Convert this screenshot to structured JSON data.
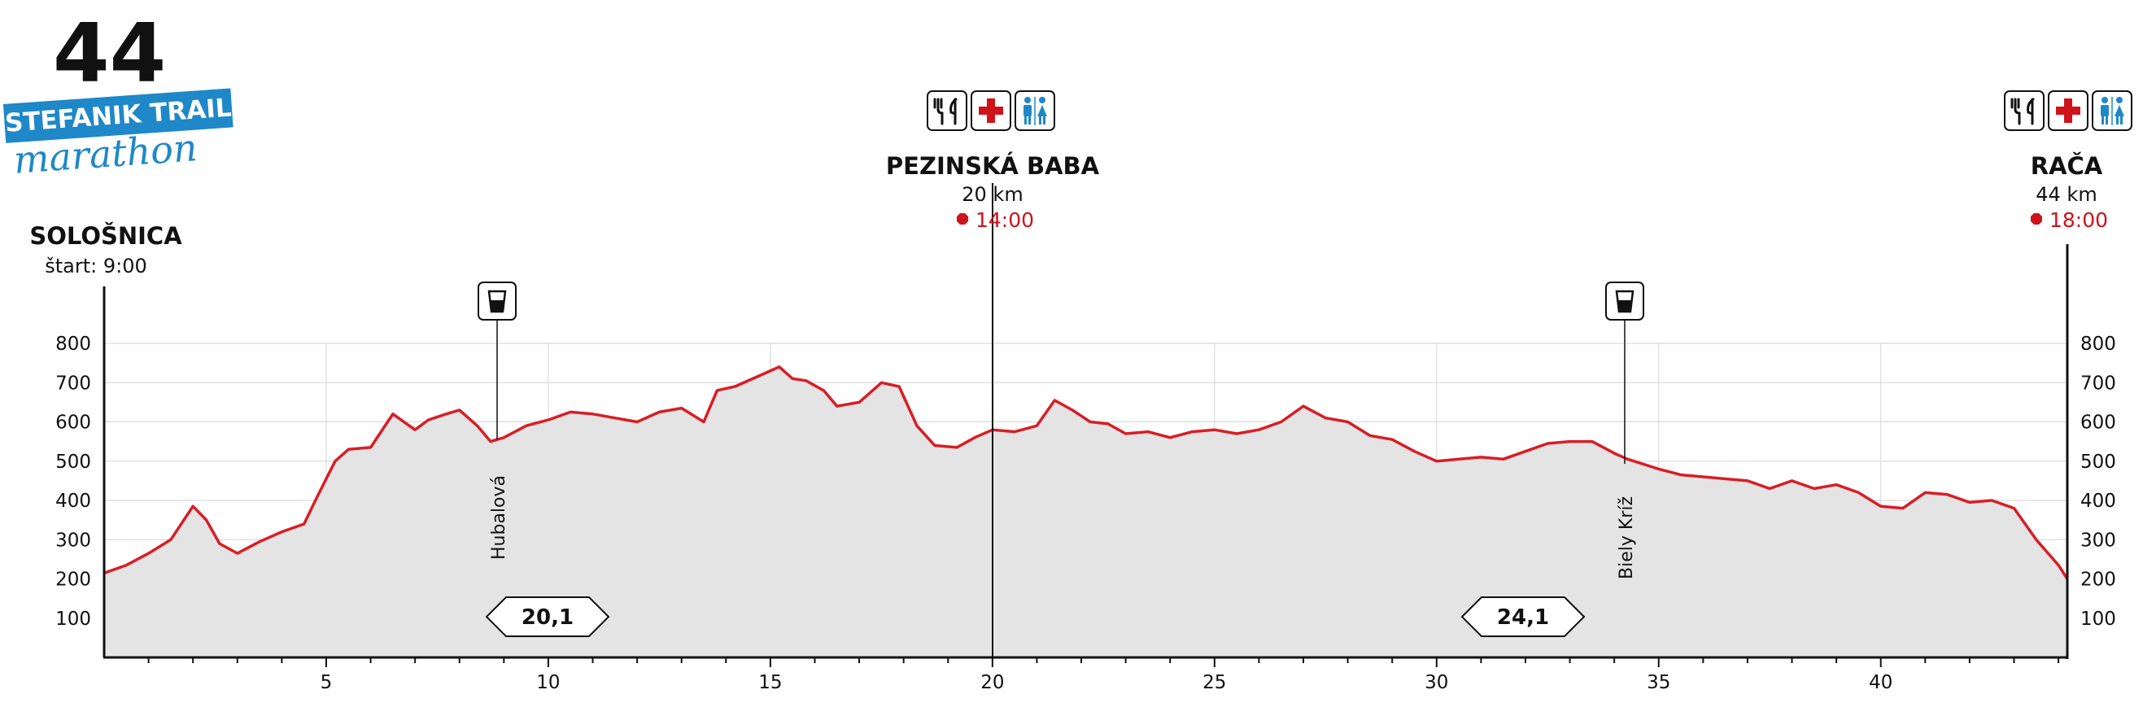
{
  "logo": {
    "number": "44",
    "band_text": "STEFANIK TRAIL",
    "script_text": "marathon",
    "band_color": "#1e88c8"
  },
  "start": {
    "name": "SOLOŠNICA",
    "start_time": "štart: 9:00"
  },
  "checkpoints": [
    {
      "name": "PEZINSKÁ BABA",
      "distance": "20 km",
      "cutoff": "14:00",
      "km": 20.1,
      "icons": [
        "cutlery-icon",
        "first-aid-icon",
        "toilet-icon"
      ]
    },
    {
      "name": "RAČA",
      "distance": "44 km",
      "cutoff": "18:00",
      "km": 44.2,
      "icons": [
        "cutlery-icon",
        "first-aid-icon",
        "toilet-icon"
      ]
    }
  ],
  "waterpoints": [
    {
      "label": "Hubalová",
      "km": 8.9,
      "icon": "water-cup-icon"
    },
    {
      "label": "Biely Kríž",
      "km": 34.3,
      "icon": "water-cup-icon"
    }
  ],
  "segments": [
    {
      "label": "20,1",
      "km": 10.0,
      "arrow": "both"
    },
    {
      "label": "24,1",
      "km": 32.0,
      "arrow": "both"
    }
  ],
  "colors": {
    "profile_line": "#d81e26",
    "profile_fill": "#e4e4e4",
    "cutoff": "#d0121b",
    "grid": "#d9d9d9"
  },
  "chart_data": {
    "type": "area",
    "title": "",
    "xlabel": "",
    "ylabel": "",
    "xlim": [
      0,
      44.2
    ],
    "ylim": [
      0,
      800
    ],
    "x_ticks": [
      5,
      10,
      15,
      20,
      25,
      30,
      35,
      40
    ],
    "y_ticks": [
      100,
      200,
      300,
      400,
      500,
      600,
      700,
      800
    ],
    "y_axes": "both",
    "grid": true,
    "series": [
      {
        "x": [
          0,
          0.5,
          1,
          1.5,
          2,
          2.3,
          2.6,
          3,
          3.5,
          4,
          4.5,
          4.8,
          5.2,
          5.5,
          6,
          6.5,
          7,
          7.3,
          7.7,
          8,
          8.4,
          8.7,
          9,
          9.5,
          10,
          10.5,
          11,
          11.5,
          12,
          12.5,
          13,
          13.5,
          13.8,
          14.2,
          14.8,
          15.2,
          15.5,
          15.8,
          16.2,
          16.5,
          17,
          17.5,
          17.9,
          18.3,
          18.7,
          19.2,
          19.6,
          20,
          20.5,
          21,
          21.4,
          21.8,
          22.2,
          22.6,
          23,
          23.5,
          24,
          24.5,
          25,
          25.5,
          26,
          26.5,
          27,
          27.5,
          28,
          28.5,
          29,
          29.5,
          30,
          30.5,
          31,
          31.5,
          32,
          32.5,
          33,
          33.5,
          34,
          34.3,
          35,
          35.5,
          36,
          36.5,
          37,
          37.5,
          38,
          38.5,
          39,
          39.5,
          40,
          40.5,
          41,
          41.5,
          42,
          42.5,
          43,
          43.5,
          44,
          44.2
        ],
        "y": [
          215,
          235,
          265,
          300,
          385,
          350,
          290,
          265,
          295,
          320,
          340,
          410,
          500,
          530,
          535,
          620,
          580,
          605,
          620,
          630,
          590,
          550,
          560,
          590,
          605,
          625,
          620,
          610,
          600,
          625,
          635,
          600,
          680,
          690,
          720,
          740,
          710,
          705,
          680,
          640,
          650,
          700,
          690,
          590,
          540,
          535,
          560,
          580,
          575,
          590,
          655,
          630,
          600,
          595,
          570,
          575,
          560,
          575,
          580,
          570,
          580,
          600,
          640,
          610,
          600,
          565,
          555,
          525,
          500,
          505,
          510,
          505,
          525,
          545,
          550,
          550,
          520,
          505,
          480,
          465,
          460,
          455,
          450,
          430,
          450,
          430,
          440,
          420,
          385,
          380,
          420,
          415,
          395,
          400,
          380,
          300,
          235,
          200
        ]
      }
    ]
  }
}
